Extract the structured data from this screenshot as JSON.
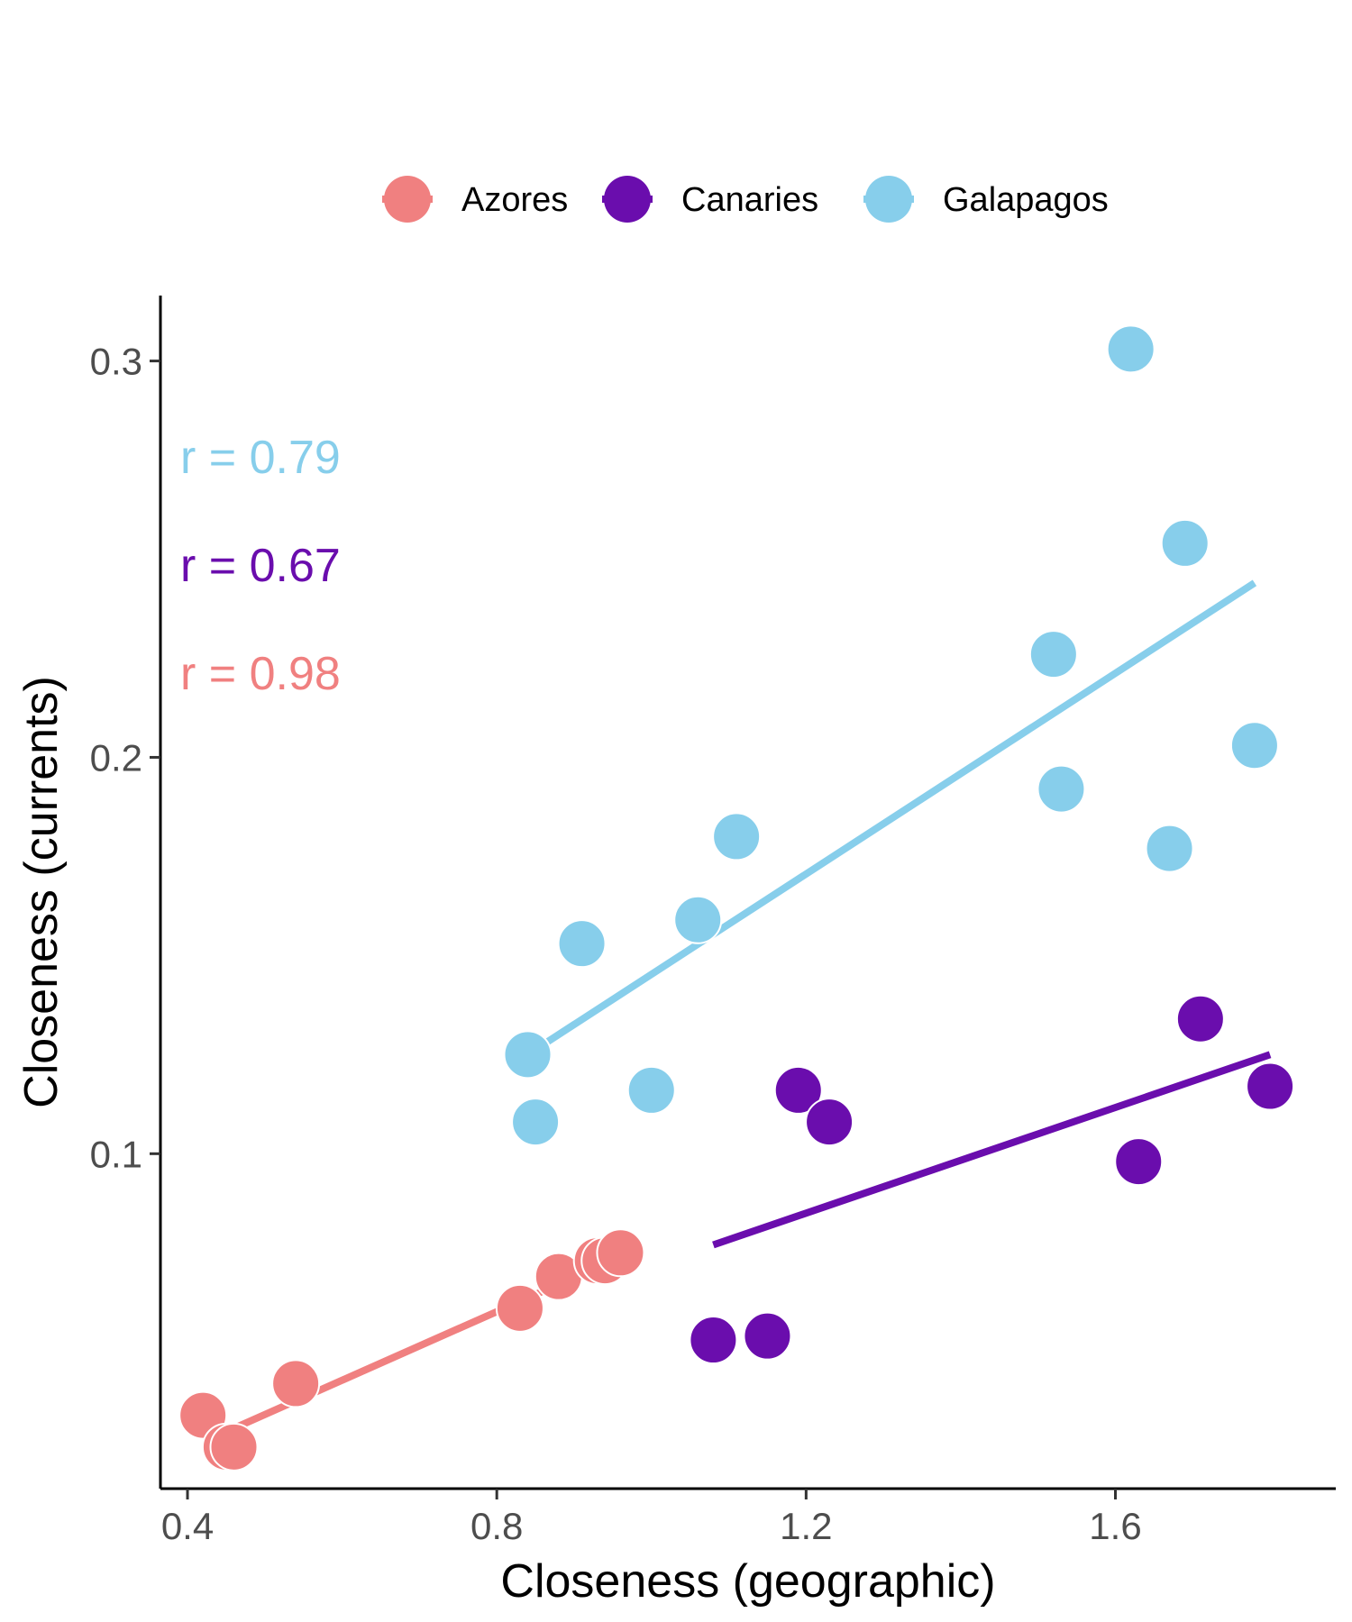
{
  "chart_data": {
    "type": "scatter",
    "title": "",
    "xlabel": "Closeness (geographic)",
    "ylabel": "Closeness (currents)",
    "xlim": [
      0.365,
      1.885
    ],
    "ylim": [
      0.0155,
      0.3165
    ],
    "x_ticks": [
      0.4,
      0.8,
      1.2,
      1.6
    ],
    "x_tick_labels": [
      "0.4",
      "0.8",
      "1.2",
      "1.6"
    ],
    "y_ticks": [
      0.1,
      0.2,
      0.3
    ],
    "y_tick_labels": [
      "0.1",
      "0.2",
      "0.3"
    ],
    "grid": false,
    "legend": {
      "position": "top",
      "entries": [
        "Azores",
        "Canaries",
        "Galapagos"
      ]
    },
    "series": [
      {
        "name": "Azores",
        "color": "#F08080",
        "points": [
          [
            0.42,
            0.034
          ],
          [
            0.45,
            0.026
          ],
          [
            0.46,
            0.026
          ],
          [
            0.54,
            0.042
          ],
          [
            0.83,
            0.061
          ],
          [
            0.88,
            0.069
          ],
          [
            0.93,
            0.073
          ],
          [
            0.94,
            0.073
          ],
          [
            0.96,
            0.075
          ]
        ],
        "fit": [
          [
            0.44,
            0.029
          ],
          [
            0.96,
            0.074
          ]
        ],
        "r_label": "r = 0.98"
      },
      {
        "name": "Canaries",
        "color": "#6A0DAD",
        "points": [
          [
            1.08,
            0.053
          ],
          [
            1.15,
            0.054
          ],
          [
            1.19,
            0.116
          ],
          [
            1.23,
            0.108
          ],
          [
            1.63,
            0.098
          ],
          [
            1.71,
            0.134
          ],
          [
            1.8,
            0.117
          ]
        ],
        "fit": [
          [
            1.08,
            0.077
          ],
          [
            1.8,
            0.125
          ]
        ],
        "r_label": "r = 0.67"
      },
      {
        "name": "Galapagos",
        "color": "#87CEEB",
        "points": [
          [
            0.84,
            0.125
          ],
          [
            0.85,
            0.108
          ],
          [
            0.91,
            0.153
          ],
          [
            1.0,
            0.116
          ],
          [
            1.06,
            0.159
          ],
          [
            1.11,
            0.18
          ],
          [
            1.52,
            0.226
          ],
          [
            1.53,
            0.192
          ],
          [
            1.62,
            0.303
          ],
          [
            1.67,
            0.177
          ],
          [
            1.69,
            0.254
          ],
          [
            1.78,
            0.203
          ]
        ],
        "fit": [
          [
            0.84,
            0.125
          ],
          [
            1.78,
            0.244
          ]
        ],
        "r_label": "r = 0.79"
      }
    ]
  }
}
